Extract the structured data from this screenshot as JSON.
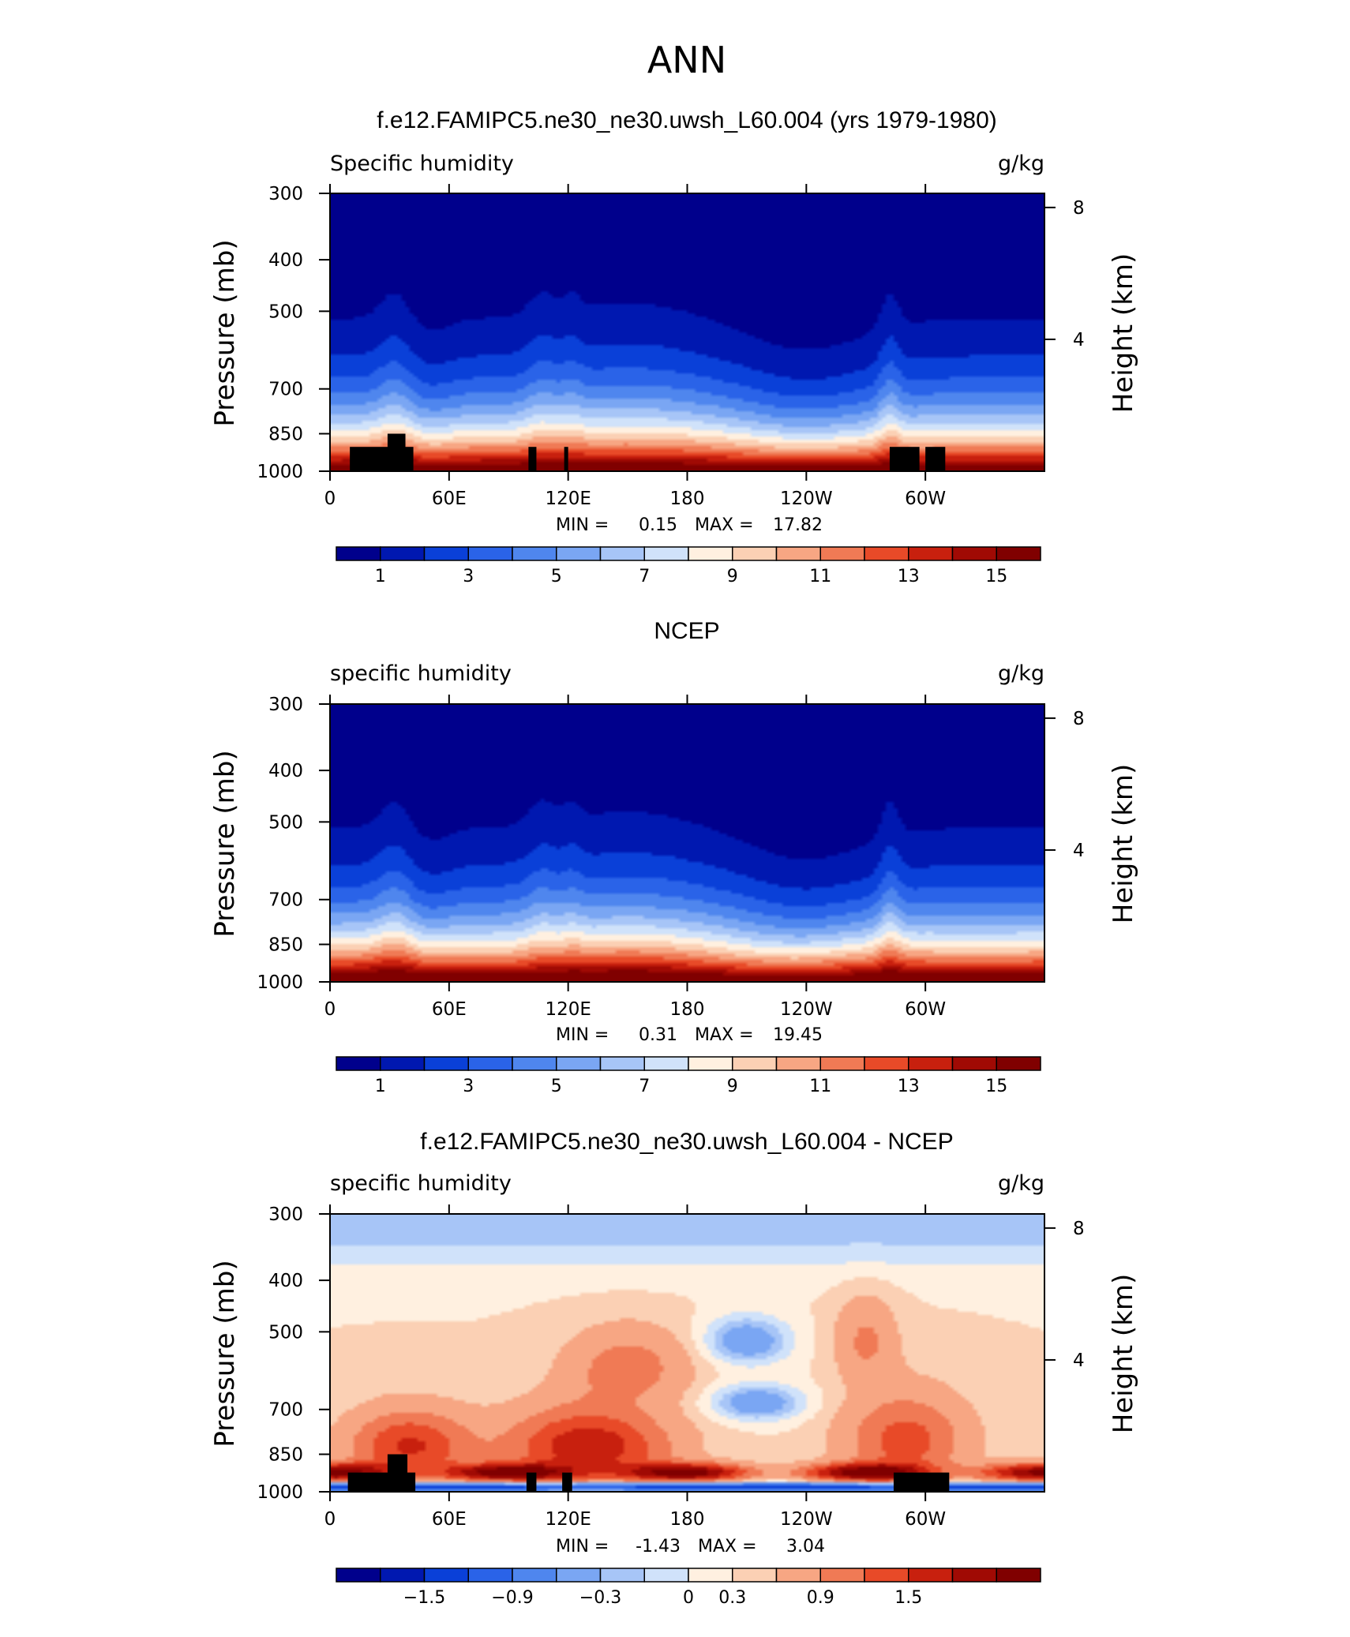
{
  "figure": {
    "title": "ANN"
  },
  "colors": {
    "ramp": [
      "#00008c",
      "#0018b0",
      "#0a40d8",
      "#2a63e8",
      "#4f86ee",
      "#7aa6f3",
      "#a7c5f7",
      "#d0e2fa",
      "#fff0e0",
      "#fbd0b4",
      "#f7a683",
      "#f07a55",
      "#e84a28",
      "#c8200e",
      "#a00a04",
      "#800000"
    ],
    "diff_ramp": [
      "#00008c",
      "#0018b0",
      "#0a40d8",
      "#2a63e8",
      "#4f86ee",
      "#7aa6f3",
      "#a7c5f7",
      "#d0e2fa",
      "#fff0e0",
      "#fbd0b4",
      "#f7a683",
      "#f07a55",
      "#e84a28",
      "#c8200e",
      "#a00a04",
      "#800000"
    ]
  },
  "chart_data": [
    {
      "type": "heatmap",
      "title": "f.e12.FAMIPC5.ne30_ne30.uwsh_L60.004 (yrs 1979-1980)",
      "left_label": "Specific humidity",
      "right_label": "g/kg",
      "ylabel": "Pressure (mb)",
      "y2label": "Height (km)",
      "yticks": [
        300,
        400,
        500,
        700,
        850,
        1000
      ],
      "y2ticks": [
        8,
        4
      ],
      "xticks": [
        "0",
        "60E",
        "120E",
        "180",
        "120W",
        "60W"
      ],
      "xtick_lon": [
        0,
        60,
        120,
        180,
        240,
        300
      ],
      "xlim": [
        0,
        360
      ],
      "ylim": [
        1000,
        300
      ],
      "min_label": "MIN =",
      "min": "0.15",
      "max_label": "MAX =",
      "max": "17.82",
      "colorbar_labels": [
        "1",
        "3",
        "5",
        "7",
        "9",
        "11",
        "13",
        "15"
      ],
      "field": "model",
      "terrain": [
        {
          "lon0": 10,
          "lon1": 42,
          "p": 900
        },
        {
          "lon0": 29,
          "lon1": 38,
          "p": 850
        },
        {
          "lon0": 100,
          "lon1": 104,
          "p": 900
        },
        {
          "lon0": 118,
          "lon1": 120,
          "p": 900
        },
        {
          "lon0": 282,
          "lon1": 297,
          "p": 900
        },
        {
          "lon0": 300,
          "lon1": 310,
          "p": 900
        }
      ]
    },
    {
      "type": "heatmap",
      "title": "NCEP",
      "left_label": "specific humidity",
      "right_label": "g/kg",
      "ylabel": "Pressure (mb)",
      "y2label": "Height (km)",
      "yticks": [
        300,
        400,
        500,
        700,
        850,
        1000
      ],
      "y2ticks": [
        8,
        4
      ],
      "xticks": [
        "0",
        "60E",
        "120E",
        "180",
        "120W",
        "60W"
      ],
      "xtick_lon": [
        0,
        60,
        120,
        180,
        240,
        300
      ],
      "xlim": [
        0,
        360
      ],
      "ylim": [
        1000,
        300
      ],
      "min_label": "MIN =",
      "min": "0.31",
      "max_label": "MAX =",
      "max": "19.45",
      "colorbar_labels": [
        "1",
        "3",
        "5",
        "7",
        "9",
        "11",
        "13",
        "15"
      ],
      "field": "obs",
      "terrain": []
    },
    {
      "type": "heatmap",
      "title": "f.e12.FAMIPC5.ne30_ne30.uwsh_L60.004 - NCEP",
      "left_label": "specific humidity",
      "right_label": "g/kg",
      "ylabel": "Pressure (mb)",
      "y2label": "Height (km)",
      "yticks": [
        300,
        400,
        500,
        700,
        850,
        1000
      ],
      "y2ticks": [
        8,
        4
      ],
      "xticks": [
        "0",
        "60E",
        "120E",
        "180",
        "120W",
        "60W"
      ],
      "xtick_lon": [
        0,
        60,
        120,
        180,
        240,
        300
      ],
      "xlim": [
        0,
        360
      ],
      "ylim": [
        1000,
        300
      ],
      "min_label": "MIN =",
      "min": "-1.43",
      "max_label": "MAX =",
      "max": "3.04",
      "colorbar_labels": [
        "−1.5",
        "−0.9",
        "−0.3",
        "0",
        "0.3",
        "0.9",
        "1.5"
      ],
      "field": "diff",
      "terrain": [
        {
          "lon0": 9,
          "lon1": 43,
          "p": 920
        },
        {
          "lon0": 29,
          "lon1": 39,
          "p": 850
        },
        {
          "lon0": 99,
          "lon1": 104,
          "p": 920
        },
        {
          "lon0": 117,
          "lon1": 122,
          "p": 920
        },
        {
          "lon0": 284,
          "lon1": 312,
          "p": 920
        }
      ]
    }
  ]
}
